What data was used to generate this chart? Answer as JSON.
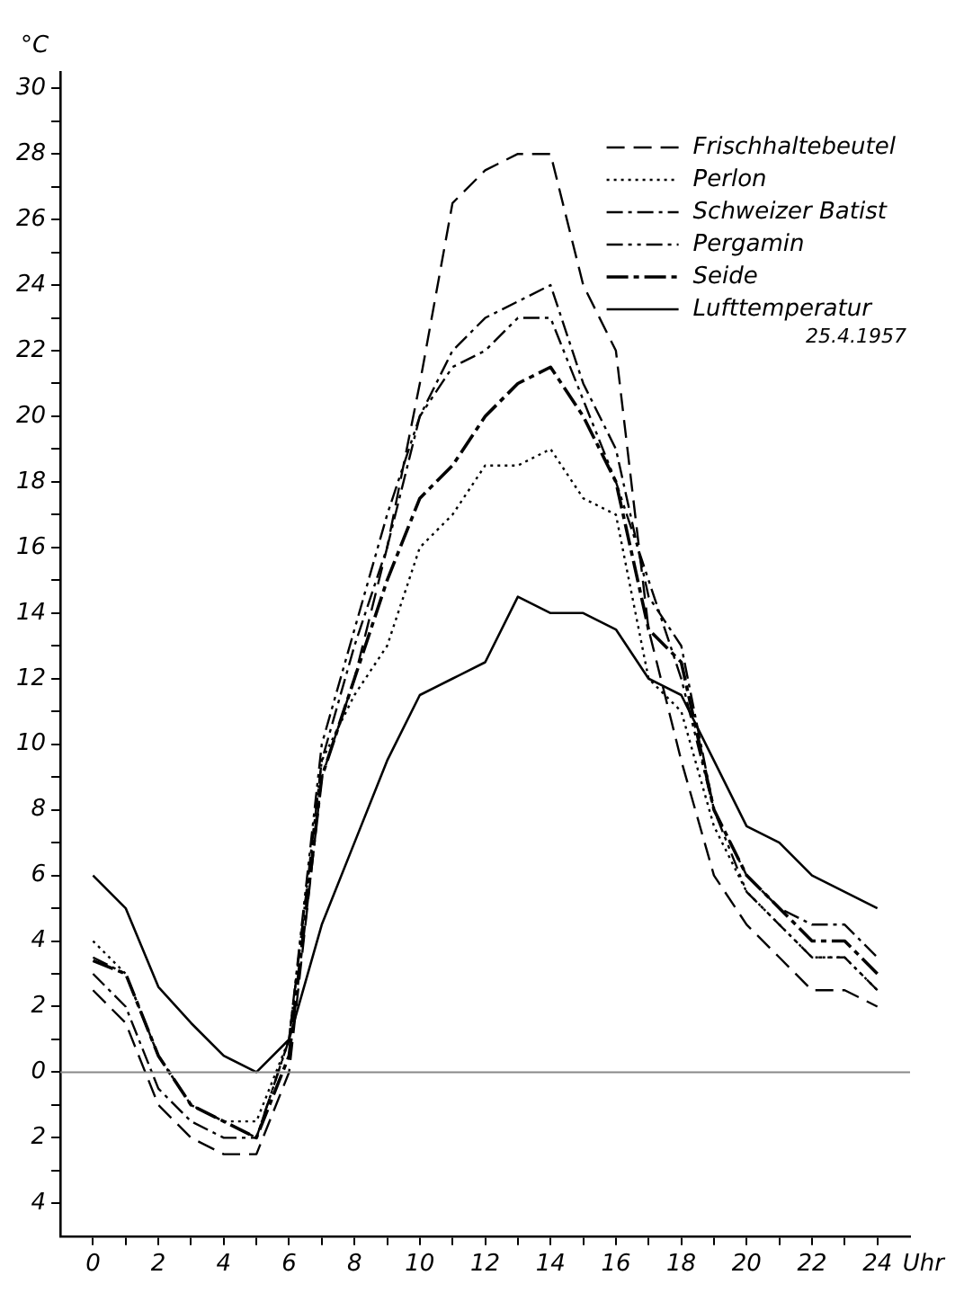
{
  "chart_data": {
    "type": "line",
    "ylabel": "°C",
    "xlabel": "Uhr",
    "x": [
      0,
      1,
      2,
      3,
      4,
      5,
      6,
      7,
      8,
      9,
      10,
      11,
      12,
      13,
      14,
      15,
      16,
      17,
      18,
      19,
      20,
      21,
      22,
      23,
      24
    ],
    "series": [
      {
        "name": "Frischhaltebeutel",
        "color": "#000000",
        "line_style": "dashed",
        "values": [
          2.5,
          1.5,
          -1,
          -2,
          -2.5,
          -2.5,
          0,
          9,
          12,
          16,
          21,
          26.5,
          27.5,
          28,
          28,
          24,
          22,
          13.5,
          9.5,
          6,
          4.5,
          3.5,
          2.5,
          2.5,
          2
        ]
      },
      {
        "name": "Perlon",
        "color": "#000000",
        "line_style": "dotted",
        "values": [
          4,
          3,
          0.5,
          -1,
          -1.5,
          -1.5,
          1,
          9.5,
          11.5,
          13,
          16,
          17,
          18.5,
          18.5,
          19,
          17.5,
          17,
          12,
          11,
          7.5,
          5.5,
          4.5,
          3.5,
          3.5,
          2.5
        ]
      },
      {
        "name": "Schweizer Batist",
        "color": "#000000",
        "line_style": "dashdot",
        "values": [
          3,
          2,
          -0.5,
          -1.5,
          -2,
          -2,
          1,
          9.5,
          13,
          16,
          20,
          22,
          23,
          23.5,
          24,
          21,
          19,
          14.5,
          13,
          8,
          6,
          5,
          4.5,
          4.5,
          3.5
        ]
      },
      {
        "name": "Pergamin",
        "color": "#000000",
        "line_style": "dashdotdot",
        "values": [
          3.5,
          3,
          0.5,
          -1,
          -1.5,
          -2,
          1,
          10,
          13.5,
          17,
          20,
          21.5,
          22,
          23,
          23,
          20.5,
          18,
          15,
          12,
          8,
          5.5,
          4.5,
          3.5,
          3.5,
          2.5
        ]
      },
      {
        "name": "Seide",
        "color": "#000000",
        "line_style": "longdashdot",
        "values": [
          3.4,
          3,
          0.5,
          -1,
          -1.5,
          -2,
          0.5,
          9,
          12,
          15,
          17.5,
          18.5,
          20,
          21,
          21.5,
          20,
          18,
          13.5,
          12.5,
          8,
          6,
          5,
          4,
          4,
          3
        ]
      },
      {
        "name": "Lufttemperatur",
        "color": "#000000",
        "line_style": "solid",
        "values": [
          6,
          5,
          2.6,
          1.5,
          0.5,
          0,
          1,
          4.5,
          7,
          9.5,
          11.5,
          12,
          12.5,
          14.5,
          14,
          14,
          13.5,
          12,
          11.5,
          9.5,
          7.5,
          7,
          6,
          5.5,
          5
        ]
      }
    ],
    "annotations": [
      "25.4.1957"
    ],
    "ref_lines": [
      {
        "axis": "y",
        "value": 0,
        "color": "#888888"
      }
    ],
    "xlim": [
      -1,
      25
    ],
    "xticks": [
      0,
      {
        "value": 1,
        "label": null
      },
      2,
      {
        "value": 3,
        "label": null
      },
      4,
      {
        "value": 5,
        "label": null
      },
      6,
      {
        "value": 7,
        "label": null
      },
      8,
      {
        "value": 9,
        "label": null
      },
      10,
      {
        "value": 11,
        "label": null
      },
      12,
      {
        "value": 13,
        "label": null
      },
      14,
      {
        "value": 15,
        "label": null
      },
      16,
      {
        "value": 17,
        "label": null
      },
      18,
      {
        "value": 19,
        "label": null
      },
      20,
      {
        "value": 21,
        "label": null
      },
      22,
      {
        "value": 23,
        "label": null
      },
      24
    ],
    "ylim": [
      -5,
      30.5
    ],
    "yticks": [
      {
        "value": -4,
        "label": "4"
      },
      {
        "value": -3,
        "label": null
      },
      {
        "value": -2,
        "label": "2"
      },
      {
        "value": -1,
        "label": null
      },
      0,
      {
        "value": 1,
        "label": null
      },
      2,
      {
        "value": 3,
        "label": null
      },
      4,
      {
        "value": 5,
        "label": null
      },
      6,
      {
        "value": 7,
        "label": null
      },
      8,
      {
        "value": 9,
        "label": null
      },
      10,
      {
        "value": 11,
        "label": null
      },
      12,
      {
        "value": 13,
        "label": null
      },
      14,
      {
        "value": 15,
        "label": null
      },
      16,
      {
        "value": 17,
        "label": null
      },
      18,
      {
        "value": 19,
        "label": null
      },
      20,
      {
        "value": 21,
        "label": null
      },
      22,
      {
        "value": 23,
        "label": null
      },
      24,
      {
        "value": 25,
        "label": null
      },
      26,
      {
        "value": 27,
        "label": null
      },
      28,
      {
        "value": 29,
        "label": null
      },
      30
    ],
    "grid": false,
    "legend": "top right",
    "marker": "none"
  }
}
